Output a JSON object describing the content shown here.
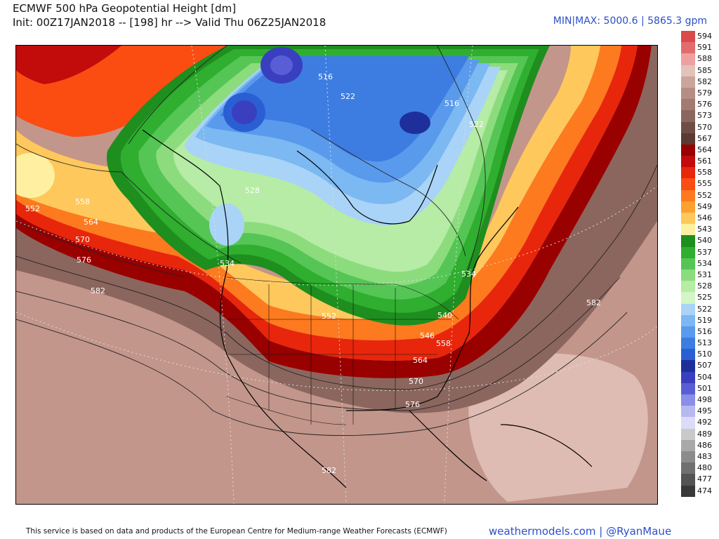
{
  "header": {
    "title_line1": "ECMWF 500 hPa Geopotential Height [dm]",
    "title_line2": "Init: 00Z17JAN2018 -- [198] hr --> Valid Thu 06Z25JAN2018",
    "minmax": "MIN|MAX: 5000.6 | 5865.3 gpm"
  },
  "legend": {
    "items": [
      {
        "label": "594",
        "color": "#d94a4a"
      },
      {
        "label": "591",
        "color": "#e46b6b"
      },
      {
        "label": "588",
        "color": "#eea0a0"
      },
      {
        "label": "585",
        "color": "#e2c2ba"
      },
      {
        "label": "582",
        "color": "#caa59b"
      },
      {
        "label": "579",
        "color": "#b68d84"
      },
      {
        "label": "576",
        "color": "#a17a72"
      },
      {
        "label": "573",
        "color": "#8b665e"
      },
      {
        "label": "570",
        "color": "#6d4e47"
      },
      {
        "label": "567",
        "color": "#5a3a33"
      },
      {
        "label": "564",
        "color": "#990000"
      },
      {
        "label": "561",
        "color": "#c20b0b"
      },
      {
        "label": "558",
        "color": "#e8260c"
      },
      {
        "label": "555",
        "color": "#fb4d12"
      },
      {
        "label": "552",
        "color": "#fd7a1f"
      },
      {
        "label": "549",
        "color": "#fda02f"
      },
      {
        "label": "546",
        "color": "#fec85c"
      },
      {
        "label": "543",
        "color": "#fef0a0"
      },
      {
        "label": "540",
        "color": "#1e8e1e"
      },
      {
        "label": "537",
        "color": "#2fae2f"
      },
      {
        "label": "534",
        "color": "#55c655"
      },
      {
        "label": "531",
        "color": "#8cdc7d"
      },
      {
        "label": "528",
        "color": "#b6eca5"
      },
      {
        "label": "525",
        "color": "#d3f6c4"
      },
      {
        "label": "522",
        "color": "#a9d4f7"
      },
      {
        "label": "519",
        "color": "#7cb8f2"
      },
      {
        "label": "516",
        "color": "#5a9aec"
      },
      {
        "label": "513",
        "color": "#3d7de2"
      },
      {
        "label": "510",
        "color": "#2a5fd3"
      },
      {
        "label": "507",
        "color": "#1e2f9c"
      },
      {
        "label": "504",
        "color": "#3a3fc0"
      },
      {
        "label": "501",
        "color": "#5a5ed6"
      },
      {
        "label": "498",
        "color": "#8a8ee6"
      },
      {
        "label": "495",
        "color": "#b6b9f0"
      },
      {
        "label": "492",
        "color": "#dcdcf8"
      },
      {
        "label": "489",
        "color": "#c9c9c9"
      },
      {
        "label": "486",
        "color": "#a8a8a8"
      },
      {
        "label": "483",
        "color": "#8c8c8c"
      },
      {
        "label": "480",
        "color": "#707070"
      },
      {
        "label": "477",
        "color": "#545454"
      },
      {
        "label": "474",
        "color": "#383838"
      }
    ]
  },
  "map": {
    "contour_labels": [
      "516",
      "516",
      "522",
      "522",
      "528",
      "534",
      "534",
      "540",
      "546",
      "552",
      "552",
      "558",
      "558",
      "564",
      "564",
      "570",
      "570",
      "576",
      "576",
      "582",
      "582",
      "582"
    ]
  },
  "footer": {
    "disclaimer": "This service is based on data and products of the European Centre for Medium-range Weather Forecasts (ECMWF)",
    "brand": "weathermodels.com | @RyanMaue"
  }
}
